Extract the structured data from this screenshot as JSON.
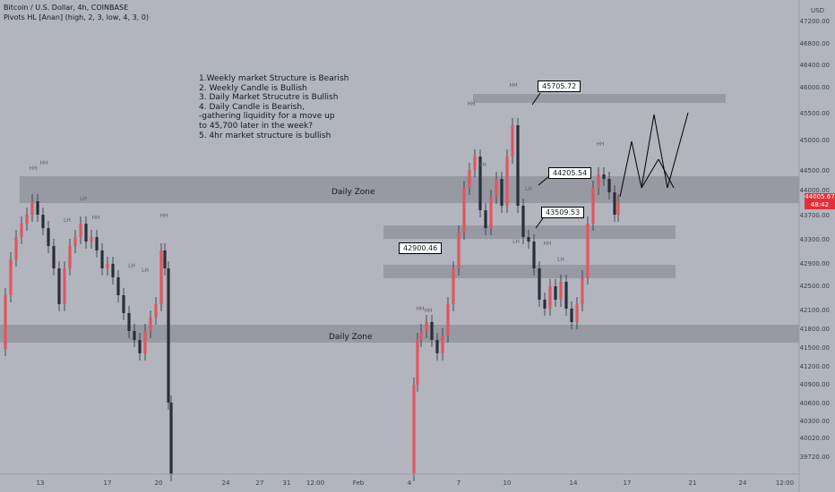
{
  "header": {
    "symbol_line": "Bitcoin / U.S. Dollar, 4h, COINBASE",
    "indicator_line": "Pivots HL [Anan] (high, 2, 3, low, 4, 3, 0)"
  },
  "notes": "1.Weekly market Structure is Bearish\n2. Weekly Candle is Bullish\n3. Daily Market Strucutre is Bullish\n4. Daily Candle is Bearish,\n-gathering liquidity for a move up\nto 45,700 later in the week?\n5. 4hr market structure is bullish",
  "currency": "USD",
  "current_price": "44005.67",
  "countdown": "48:42",
  "colors": {
    "background": "#b2b5be",
    "zone": "#8e9099",
    "up_candle": "#e0565e",
    "down_candle": "#2a2e39",
    "price_tag": "#e0303a"
  },
  "chart_data": {
    "type": "candlestick",
    "title": "Bitcoin / U.S. Dollar, 4h, COINBASE",
    "y_axis_ticks": [
      47200,
      46800,
      46400,
      46000,
      45500,
      45000,
      44500,
      44000,
      43700,
      43300,
      42900,
      42500,
      42100,
      41800,
      41500,
      41200,
      40900,
      40600,
      40300,
      40020,
      39720
    ],
    "x_axis_labels": [
      "13",
      "17",
      "20",
      "24",
      "27",
      "31",
      "12:00",
      "Feb",
      "4",
      "7",
      "10",
      "14",
      "17",
      "21",
      "24",
      "12:00"
    ],
    "zones": [
      {
        "label": "Daily Zone",
        "low": 43850,
        "high": 44350
      },
      {
        "label": "Daily Zone",
        "low": 41600,
        "high": 41900
      },
      {
        "label": "",
        "low": 43300,
        "high": 43450
      },
      {
        "label": "",
        "low": 42750,
        "high": 42900
      },
      {
        "label": "",
        "low": 45700,
        "high": 45820
      }
    ],
    "levels": [
      45705.72,
      44205.54,
      43509.53,
      42900.46
    ],
    "pivot_labels": [
      "HH",
      "HH",
      "LH",
      "LH",
      "HH",
      "LH",
      "LH",
      "HH",
      "HH",
      "HH",
      "HH",
      "HH",
      "LH",
      "LH",
      "HH",
      "LH",
      "LH",
      "HH"
    ],
    "last_price": 44005.67
  }
}
